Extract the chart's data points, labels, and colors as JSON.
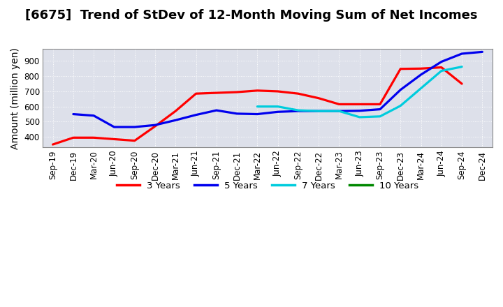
{
  "title": "[6675]  Trend of StDev of 12-Month Moving Sum of Net Incomes",
  "ylabel": "Amount (million yen)",
  "background_color": "#ffffff",
  "plot_background": "#dde0ea",
  "x_labels": [
    "Sep-19",
    "Dec-19",
    "Mar-20",
    "Jun-20",
    "Sep-20",
    "Dec-20",
    "Mar-21",
    "Jun-21",
    "Sep-21",
    "Dec-21",
    "Mar-22",
    "Jun-22",
    "Sep-22",
    "Dec-22",
    "Mar-23",
    "Jun-23",
    "Sep-23",
    "Dec-23",
    "Mar-24",
    "Jun-24",
    "Sep-24",
    "Dec-24"
  ],
  "series": {
    "3 Years": {
      "color": "#ff0000",
      "data_x": [
        0,
        1,
        2,
        3,
        4,
        5,
        6,
        7,
        8,
        9,
        10,
        11,
        12,
        13,
        14,
        15,
        16,
        17,
        18,
        19,
        20
      ],
      "data_y": [
        350,
        395,
        395,
        385,
        375,
        470,
        570,
        685,
        690,
        695,
        705,
        700,
        685,
        655,
        615,
        615,
        615,
        848,
        850,
        858,
        750
      ]
    },
    "5 Years": {
      "color": "#0000ee",
      "data_x": [
        1,
        2,
        3,
        4,
        5,
        6,
        7,
        8,
        9,
        10,
        11,
        12,
        13,
        14,
        15,
        16,
        17,
        18,
        19,
        20,
        21
      ],
      "data_y": [
        550,
        540,
        465,
        465,
        478,
        510,
        545,
        575,
        553,
        550,
        565,
        570,
        570,
        570,
        572,
        582,
        710,
        810,
        895,
        948,
        960
      ]
    },
    "7 Years": {
      "color": "#00ccdd",
      "data_x": [
        10,
        11,
        12,
        13,
        14,
        15,
        16,
        17,
        18,
        19,
        20
      ],
      "data_y": [
        600,
        600,
        575,
        570,
        570,
        530,
        535,
        605,
        720,
        835,
        862
      ]
    },
    "10 Years": {
      "color": "#008800",
      "data_x": [],
      "data_y": []
    }
  },
  "ylim": [
    330,
    980
  ],
  "yticks": [
    400,
    500,
    600,
    700,
    800,
    900
  ],
  "legend_entries": [
    {
      "label": "3 Years",
      "color": "#ff0000"
    },
    {
      "label": "5 Years",
      "color": "#0000ee"
    },
    {
      "label": "7 Years",
      "color": "#00ccdd"
    },
    {
      "label": "10 Years",
      "color": "#008800"
    }
  ],
  "title_fontsize": 13,
  "axis_fontsize": 10,
  "tick_fontsize": 8.5
}
